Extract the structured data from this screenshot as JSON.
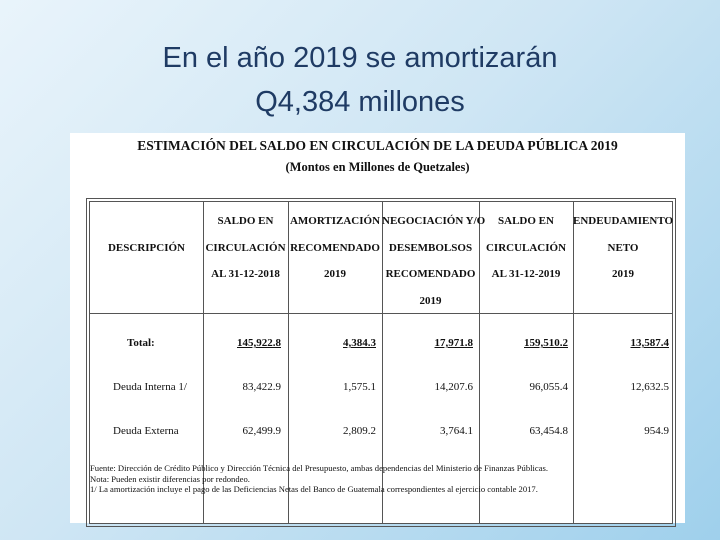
{
  "slide": {
    "title_line1": "En el año 2019 se amortizarán",
    "title_line2": "Q4,384 millones"
  },
  "document": {
    "heading": "ESTIMACIÓN DEL SALDO EN CIRCULACIÓN DE LA DEUDA PÚBLICA 2019",
    "subheading": "(Montos en Millones de Quetzales)",
    "columns": [
      {
        "lines": [
          "DESCRIPCIÓN"
        ]
      },
      {
        "lines": [
          "SALDO EN",
          "CIRCULACIÓN",
          "AL 31-12-2018"
        ]
      },
      {
        "lines": [
          "AMORTIZACIÓN",
          "RECOMENDADO",
          "2019"
        ]
      },
      {
        "lines": [
          "NEGOCIACIÓN Y/O",
          "DESEMBOLSOS",
          "RECOMENDADO",
          "2019"
        ]
      },
      {
        "lines": [
          "SALDO EN",
          "CIRCULACIÓN",
          "AL 31-12-2019"
        ]
      },
      {
        "lines": [
          "ENDEUDAMIENTO",
          "NETO",
          "2019"
        ]
      }
    ],
    "rows": [
      {
        "label": "Total:",
        "values": [
          "145,922.8",
          "4,384.3",
          "17,971.8",
          "159,510.2",
          "13,587.4"
        ]
      },
      {
        "label": "Deuda Interna 1/",
        "values": [
          "83,422.9",
          "1,575.1",
          "14,207.6",
          "96,055.4",
          "12,632.5"
        ]
      },
      {
        "label": "Deuda Externa",
        "values": [
          "62,499.9",
          "2,809.2",
          "3,764.1",
          "63,454.8",
          "954.9"
        ]
      }
    ],
    "notes": [
      "Fuente: Dirección de Crédito Público y Dirección Técnica del Presupuesto, ambas dependencias del Ministerio de Finanzas Públicas.",
      "Nota: Pueden existir diferencias por redondeo.",
      "1/ La amortización incluye el pago de las Deficiencias Netas del Banco de Guatemala correspondientes al ejercicio contable 2017."
    ]
  }
}
